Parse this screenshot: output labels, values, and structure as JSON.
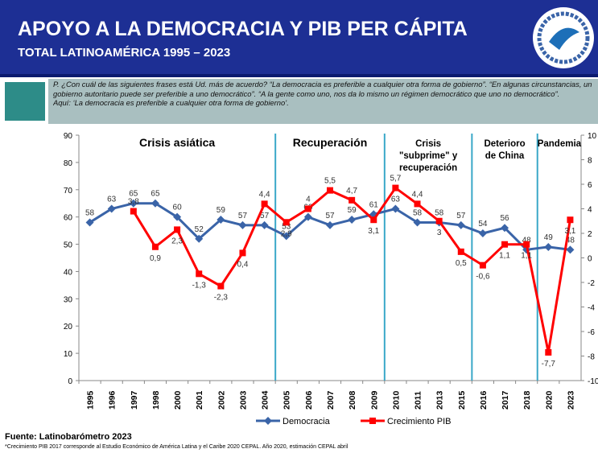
{
  "chart_data": {
    "type": "line",
    "title": "APOYO A LA DEMOCRACIA Y PIB PER CÁPITA",
    "subtitle": "TOTAL LATINOAMÉRICA 1995 – 2023",
    "question": "P. ¿Con cuál de las siguientes frases está Ud. más de acuerdo? “La democracia es preferible a cualquier otra forma de gobierno”. “En algunas circunstancias, un gobierno autoritario puede ser preferible a uno democrático”. “A la gente como uno, nos da lo mismo un régimen democrático que uno no democrático”.",
    "answer": "Aquí: ‘La democracia es preferible a cualquier otra forma de gobierno’.",
    "periods": [
      "Crisis asiática",
      "Recuperación",
      "Crisis \"subprime\" y recuperación",
      "Deterioro de China",
      "Pandemia"
    ],
    "categories": [
      "1995",
      "1996",
      "1997",
      "1998",
      "2000",
      "2001",
      "2002",
      "2003",
      "2004",
      "2005",
      "2006",
      "2007",
      "2008",
      "2009",
      "2010",
      "2011",
      "2013",
      "2015",
      "2016",
      "2017",
      "2018",
      "2020",
      "2023"
    ],
    "series": [
      {
        "name": "Democracia",
        "color": "#3a64a8",
        "values": [
          58,
          63,
          65,
          65,
          60,
          52,
          59,
          57,
          57,
          53,
          60,
          57,
          59,
          61,
          63,
          58,
          58,
          57,
          54,
          56,
          48,
          49,
          48
        ]
      },
      {
        "name": "Crecimiento PIB",
        "color": "#ff0000",
        "axis": "y2",
        "values": [
          null,
          null,
          3.8,
          0.9,
          2.3,
          -1.3,
          -2.3,
          0.4,
          4.4,
          2.9,
          4,
          5.5,
          4.7,
          3.1,
          5.7,
          4.4,
          3,
          0.5,
          -0.6,
          1.1,
          1.1,
          -7.7,
          3.1
        ],
        "value_labels": [
          null,
          null,
          "3,8",
          "0,9",
          "2,3",
          "-1,3",
          "-2,3",
          "0,4",
          "4,4",
          "2,9",
          "4",
          "5,5",
          "4,7",
          "3,1",
          "5,7",
          "4,4",
          "3",
          "0,5",
          "-0,6",
          "1,1",
          "1,1",
          "-7,7",
          "3,1"
        ]
      }
    ],
    "ylim": [
      0,
      90
    ],
    "yticks": [
      0,
      10,
      20,
      30,
      40,
      50,
      60,
      70,
      80,
      90
    ],
    "y2lim": [
      -10,
      10
    ],
    "y2ticks": [
      -10,
      -8,
      -6,
      -4,
      -2,
      0,
      2,
      4,
      6,
      8,
      10
    ],
    "legend": "bottom",
    "source": "Fuente: Latinobarómetro 2023",
    "footnote": "*Crecimiento PIB 2017 corresponde al Estudio Económico de América Latina y el Caribe 2020 CEPAL. Año 2020, estimación CEPAL abril"
  }
}
